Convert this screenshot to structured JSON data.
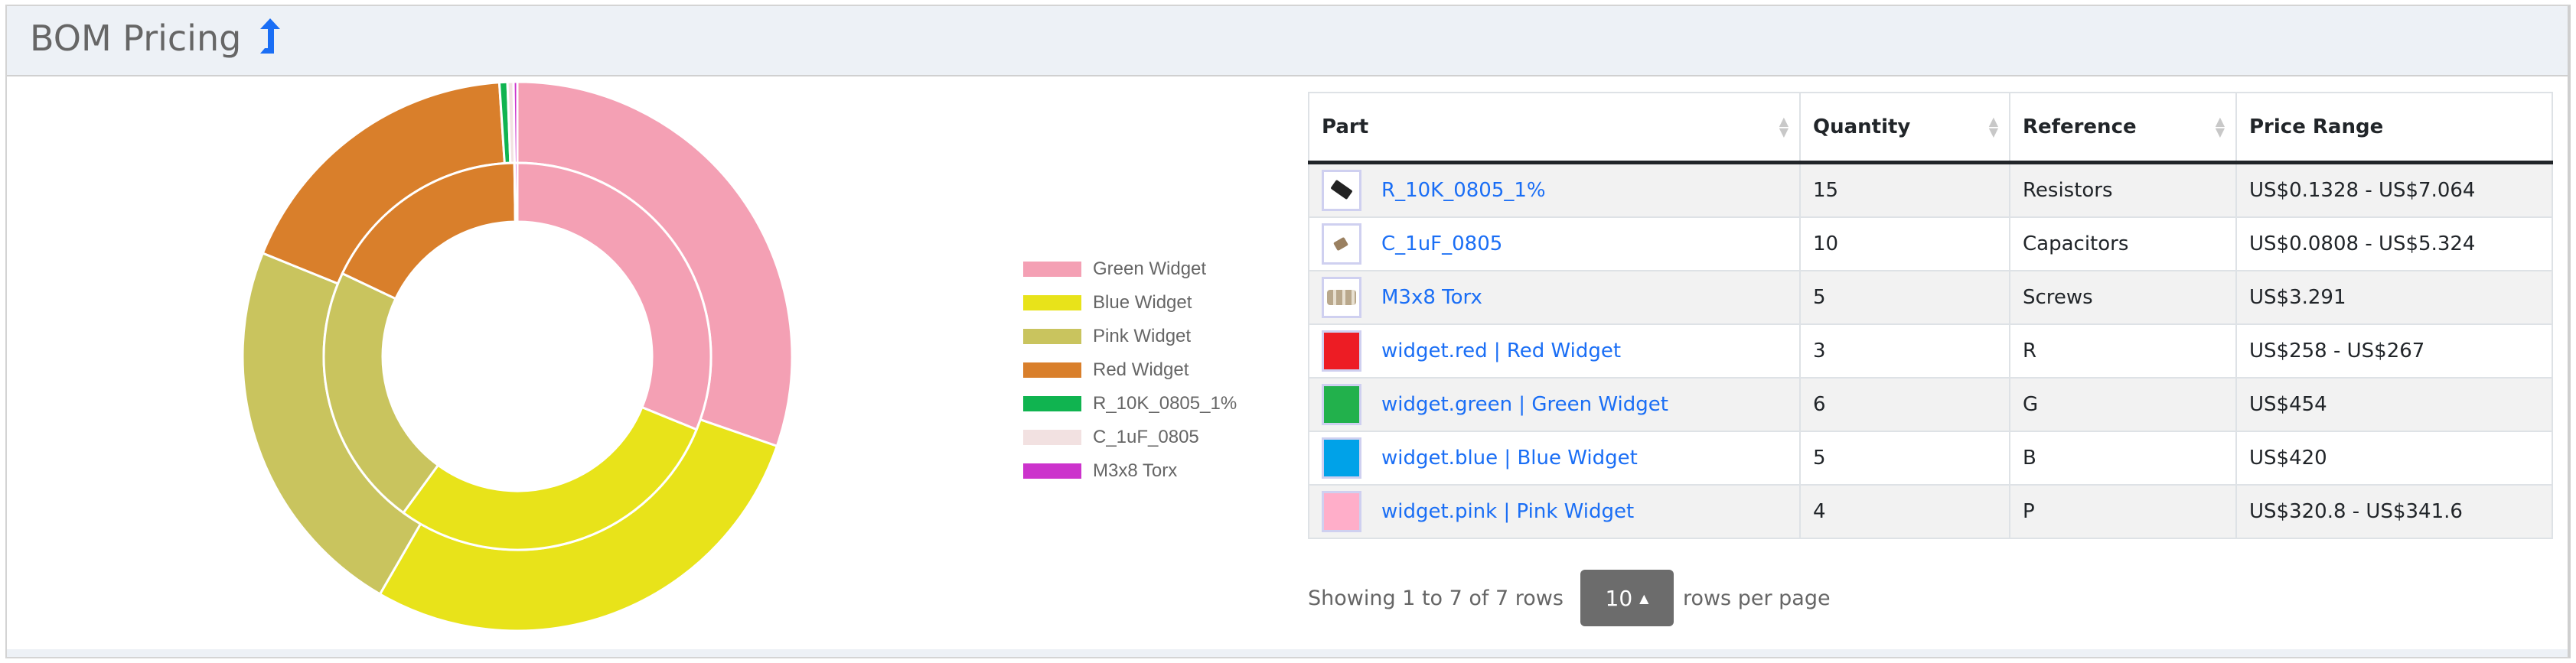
{
  "header": {
    "title": "BOM Pricing",
    "icon": "level-up-arrow-icon",
    "icon_color": "#1a6ef5"
  },
  "chart_data": {
    "type": "doughnut",
    "categories": [
      "Green Widget",
      "Blue Widget",
      "Pink Widget",
      "Red Widget",
      "R_10K_0805_1%",
      "C_1uF_0805",
      "M3x8 Torx"
    ],
    "colors": [
      "#f4a0b4",
      "#e8e31a",
      "#c9c45e",
      "#d97f2b",
      "#10b450",
      "#f2e1e1",
      "#cc33cc"
    ],
    "series": [
      {
        "values": [
          454,
          420,
          341.6,
          267,
          7.064,
          5.324,
          3.291
        ]
      },
      {
        "values": [
          454,
          420,
          320.8,
          258,
          0.1328,
          0.0808,
          3.291
        ]
      }
    ],
    "legend": "right"
  },
  "table": {
    "columns": [
      "Part",
      "Quantity",
      "Reference",
      "Price Range"
    ],
    "rows": [
      {
        "part": "R_10K_0805_1%",
        "thumb": "resistor",
        "quantity": "15",
        "reference": "Resistors",
        "price": "US$0.1328 - US$7.064"
      },
      {
        "part": "C_1uF_0805",
        "thumb": "capacitor",
        "quantity": "10",
        "reference": "Capacitors",
        "price": "US$0.0808 - US$5.324"
      },
      {
        "part": "M3x8 Torx",
        "thumb": "screws",
        "quantity": "5",
        "reference": "Screws",
        "price": "US$3.291"
      },
      {
        "part": "widget.red | Red Widget",
        "thumb": "#ed1c24",
        "quantity": "3",
        "reference": "R",
        "price": "US$258 - US$267"
      },
      {
        "part": "widget.green | Green Widget",
        "thumb": "#22b14c",
        "quantity": "6",
        "reference": "G",
        "price": "US$454"
      },
      {
        "part": "widget.blue | Blue Widget",
        "thumb": "#00a2e8",
        "quantity": "5",
        "reference": "B",
        "price": "US$420"
      },
      {
        "part": "widget.pink | Pink Widget",
        "thumb": "#ffaec9",
        "quantity": "4",
        "reference": "P",
        "price": "US$320.8 - US$341.6"
      }
    ]
  },
  "pagination": {
    "showing": "Showing 1 to 7 of 7 rows",
    "page_size": "10",
    "suffix": "rows per page"
  }
}
